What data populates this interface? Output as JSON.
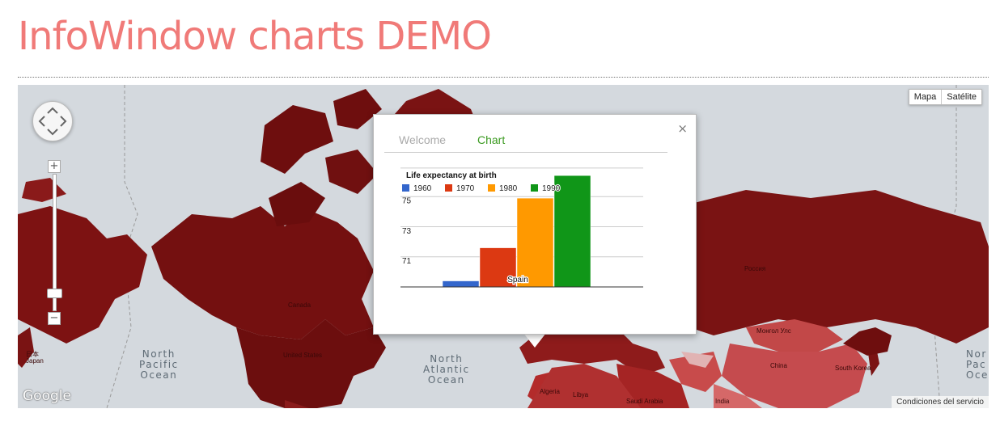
{
  "page": {
    "title": "InfoWindow charts DEMO"
  },
  "map": {
    "type_buttons": [
      "Mapa",
      "Satélite"
    ],
    "zoom_in": "+",
    "zoom_out": "−",
    "oceans": [
      {
        "name": "North Pacific Ocean",
        "lines": [
          "North",
          "Pacific",
          "Ocean"
        ]
      },
      {
        "name": "North Atlantic Ocean",
        "lines": [
          "North",
          "Atlantic",
          "Ocean"
        ]
      },
      {
        "name": "North Pacific Ocean (east)",
        "lines": [
          "Nor",
          "Pac",
          "Oce"
        ]
      }
    ],
    "countries": [
      "Canada",
      "United States",
      "Россия",
      "Монгол Улс",
      "China",
      "日本",
      "Japan",
      "Algeria",
      "Libya",
      "Saudi Arabia",
      "India",
      "South Korea"
    ],
    "google_logo": "Google",
    "terms": "Condiciones del servicio",
    "colors": {
      "water": "#d4d9de",
      "land": "#7d1212",
      "light_land": "#c7484c"
    }
  },
  "infowindow": {
    "close_icon": "×",
    "tabs": [
      {
        "label": "Welcome",
        "active": false
      },
      {
        "label": "Chart",
        "active": true
      }
    ]
  },
  "chart_data": {
    "type": "bar",
    "title": "Life expectancy at birth",
    "categories": [
      "Spain"
    ],
    "series": [
      {
        "name": "1960",
        "values": [
          69.8
        ],
        "color": "#3366cc"
      },
      {
        "name": "1970",
        "values": [
          72.0
        ],
        "color": "#dc3912"
      },
      {
        "name": "1980",
        "values": [
          75.3
        ],
        "color": "#ff9900"
      },
      {
        "name": "1990",
        "values": [
          76.8
        ],
        "color": "#109618"
      }
    ],
    "yticks": [
      71,
      73,
      75
    ],
    "ylim": [
      69.4,
      77.4
    ],
    "legend_position": "top",
    "grid": true
  }
}
